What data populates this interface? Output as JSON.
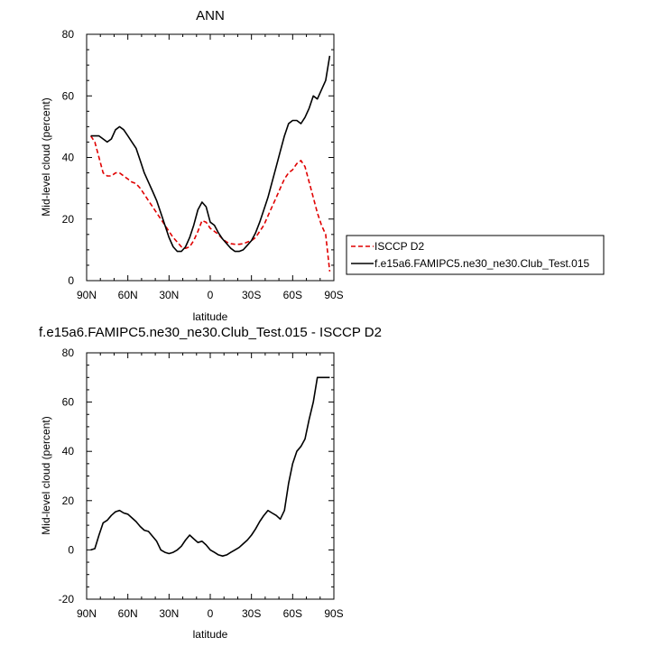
{
  "chart_data": [
    {
      "type": "line",
      "title": "ANN",
      "xlabel": "latitude",
      "ylabel": "Mid-level cloud (percent)",
      "xlim": [
        -90,
        90
      ],
      "ylim": [
        0,
        80
      ],
      "x_ticks": [
        -90,
        -60,
        -30,
        0,
        30,
        60,
        90
      ],
      "x_tick_labels": [
        "90N",
        "60N",
        "30N",
        "0",
        "30S",
        "60S",
        "90S"
      ],
      "y_ticks": [
        0,
        20,
        40,
        60,
        80
      ],
      "y_tick_labels": [
        "0",
        "20",
        "40",
        "60",
        "80"
      ],
      "legend_position": "right",
      "series": [
        {
          "name": "ISCCP D2",
          "color": "#e00000",
          "style": "dashed",
          "x": [
            -87,
            -84,
            -81,
            -78,
            -75,
            -72,
            -69,
            -66,
            -63,
            -60,
            -57,
            -54,
            -51,
            -48,
            -45,
            -42,
            -39,
            -36,
            -33,
            -30,
            -27,
            -24,
            -21,
            -18,
            -15,
            -12,
            -9,
            -6,
            -3,
            0,
            3,
            6,
            9,
            12,
            15,
            18,
            21,
            24,
            27,
            30,
            33,
            36,
            39,
            42,
            45,
            48,
            51,
            54,
            57,
            60,
            63,
            66,
            69,
            72,
            75,
            78,
            81,
            84,
            87
          ],
          "y": [
            47,
            45,
            40,
            35,
            34,
            34,
            35,
            35,
            34,
            33,
            32,
            31.5,
            30,
            28,
            26,
            24,
            22,
            20,
            18,
            16,
            14,
            12.5,
            11,
            10.5,
            11,
            13,
            16,
            19.5,
            19,
            17,
            16,
            15,
            13.5,
            12.5,
            12,
            11.8,
            11.8,
            12,
            12.5,
            13,
            14,
            16,
            18,
            21,
            24,
            27,
            30,
            33,
            35,
            36,
            38,
            39,
            37,
            32,
            27,
            22,
            18,
            15,
            3
          ]
        },
        {
          "name": "f.e15a6.FAMIPC5.ne30_ne30.Club_Test.015",
          "color": "#000000",
          "style": "solid",
          "x": [
            -87,
            -84,
            -81,
            -78,
            -75,
            -72,
            -69,
            -66,
            -63,
            -60,
            -57,
            -54,
            -51,
            -48,
            -45,
            -42,
            -39,
            -36,
            -33,
            -30,
            -27,
            -24,
            -21,
            -18,
            -15,
            -12,
            -9,
            -6,
            -3,
            0,
            3,
            6,
            9,
            12,
            15,
            18,
            21,
            24,
            27,
            30,
            33,
            36,
            39,
            42,
            45,
            48,
            51,
            54,
            57,
            60,
            63,
            66,
            69,
            72,
            75,
            78,
            81,
            84,
            87
          ],
          "y": [
            47,
            47,
            47,
            46,
            45,
            46,
            49,
            50,
            49,
            47,
            45,
            43,
            39,
            35,
            32,
            29,
            26,
            22,
            18,
            14,
            11,
            9.5,
            9.5,
            11,
            14,
            18,
            23,
            25.5,
            24,
            19,
            18,
            15.5,
            13.5,
            12,
            10.5,
            9.5,
            9.5,
            10,
            11.5,
            13,
            15.5,
            19,
            23,
            27,
            32,
            37,
            42,
            47,
            51,
            52,
            52,
            51,
            53,
            56,
            60,
            59,
            62,
            65,
            73
          ]
        }
      ]
    },
    {
      "type": "line",
      "title": "f.e15a6.FAMIPC5.ne30_ne30.Club_Test.015 - ISCCP D2",
      "xlabel": "latitude",
      "ylabel": "Mid-level cloud (percent)",
      "xlim": [
        -90,
        90
      ],
      "ylim": [
        -20,
        80
      ],
      "x_ticks": [
        -90,
        -60,
        -30,
        0,
        30,
        60,
        90
      ],
      "x_tick_labels": [
        "90N",
        "60N",
        "30N",
        "0",
        "30S",
        "60S",
        "90S"
      ],
      "y_ticks": [
        -20,
        0,
        20,
        40,
        60,
        80
      ],
      "y_tick_labels": [
        "-20",
        "0",
        "20",
        "40",
        "60",
        "80"
      ],
      "series": [
        {
          "color": "#000000",
          "style": "solid",
          "x": [
            -87,
            -84,
            -81,
            -78,
            -75,
            -72,
            -69,
            -66,
            -63,
            -60,
            -57,
            -54,
            -51,
            -48,
            -45,
            -42,
            -39,
            -36,
            -33,
            -30,
            -27,
            -24,
            -21,
            -18,
            -15,
            -12,
            -9,
            -6,
            -3,
            0,
            3,
            6,
            9,
            12,
            15,
            18,
            21,
            24,
            27,
            30,
            33,
            36,
            39,
            42,
            45,
            48,
            51,
            54,
            57,
            60,
            63,
            66,
            69,
            72,
            75,
            78,
            81,
            84,
            87
          ],
          "y": [
            0,
            0.5,
            6,
            11,
            12,
            14,
            15.5,
            16,
            15,
            14.5,
            13,
            11.5,
            9.5,
            8,
            7.5,
            5.5,
            3.5,
            0,
            -1,
            -1.5,
            -1,
            0,
            1.5,
            4,
            6,
            4.5,
            3,
            3.5,
            2,
            0,
            -1,
            -2,
            -2.5,
            -2,
            -1,
            0,
            1,
            2.5,
            4,
            6,
            8.5,
            11.5,
            14,
            16,
            15,
            14,
            12.5,
            16,
            27,
            35,
            40,
            42,
            45,
            53,
            60,
            70,
            70,
            70,
            70
          ]
        }
      ]
    }
  ]
}
